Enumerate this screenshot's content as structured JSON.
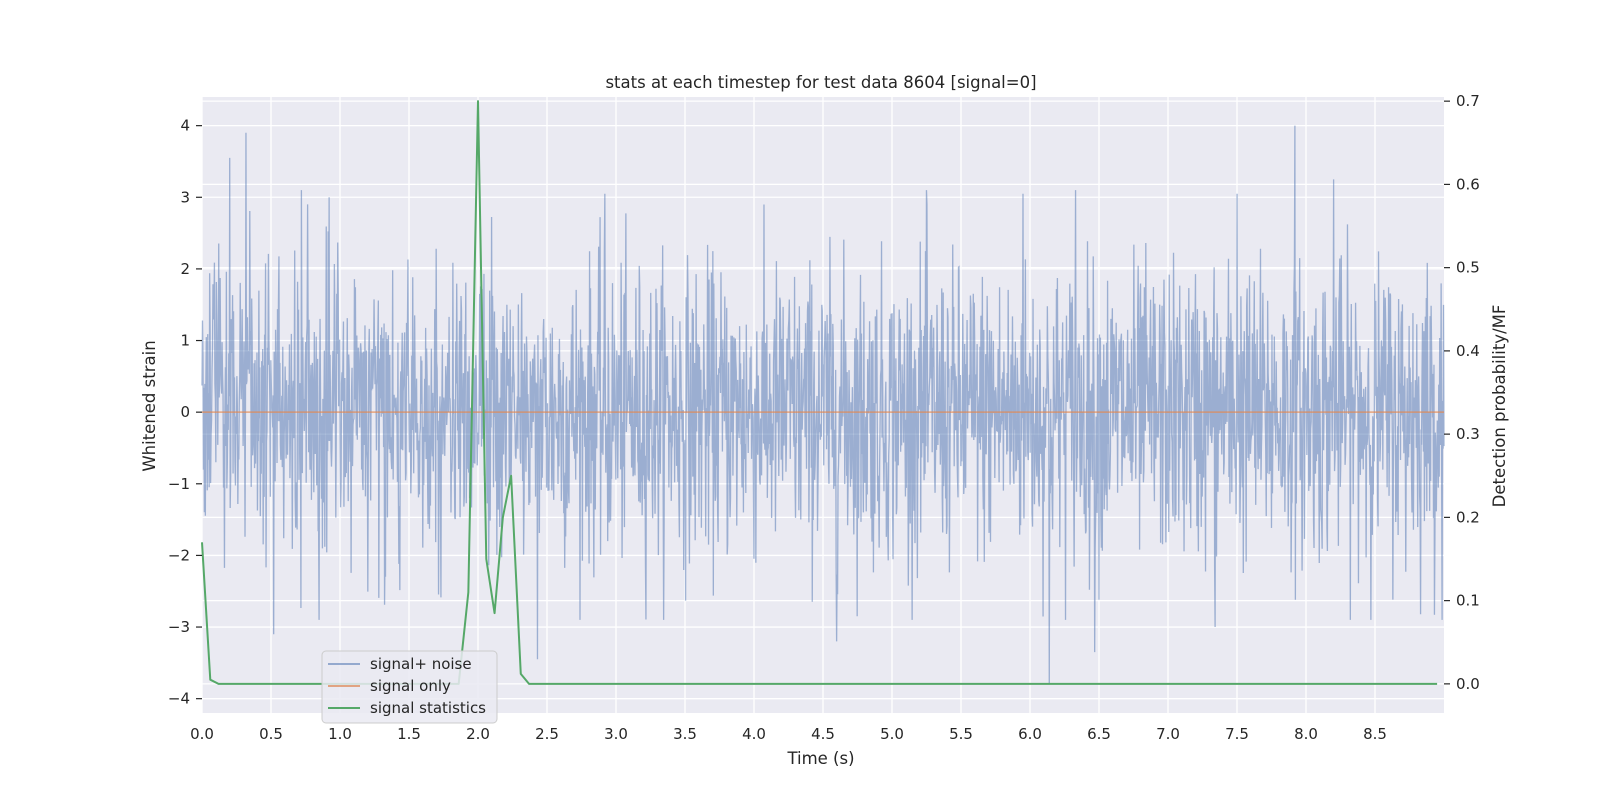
{
  "chart_data": {
    "type": "line",
    "title": "stats at each timestep for test data 8604 [signal=0]",
    "xlabel": "Time (s)",
    "ylabel": "Whitened strain",
    "ylabel_right": "Detection probability/MF",
    "xlim": [
      0.0,
      9.0
    ],
    "ylim": [
      -4.2,
      4.4
    ],
    "ylim_right": [
      -0.035,
      0.705
    ],
    "x_ticks": [
      "0.0",
      "0.5",
      "1.0",
      "1.5",
      "2.0",
      "2.5",
      "3.0",
      "3.5",
      "4.0",
      "4.5",
      "5.0",
      "5.5",
      "6.0",
      "6.5",
      "7.0",
      "7.5",
      "8.0",
      "8.5"
    ],
    "y_ticks": [
      "4",
      "3",
      "2",
      "1",
      "0",
      "−1",
      "−2",
      "−3",
      "−4"
    ],
    "y_ticks_right": [
      "0.7",
      "0.6",
      "0.5",
      "0.4",
      "0.3",
      "0.2",
      "0.1",
      "0.0"
    ],
    "grid": true,
    "legend_position": "lower-left",
    "series": [
      {
        "name": "signal+ noise",
        "color": "#4c72b0",
        "axis": "left",
        "style": "dense noise, amplitude ~ ±2 with peaks to about 4 and −3.8",
        "peaks": [
          {
            "x": 0.2,
            "y": 3.55
          },
          {
            "x": 0.32,
            "y": 3.9
          },
          {
            "x": 0.72,
            "y": 3.1
          },
          {
            "x": 0.92,
            "y": 3.0
          },
          {
            "x": 2.92,
            "y": 3.05
          },
          {
            "x": 5.25,
            "y": 3.1
          },
          {
            "x": 5.95,
            "y": 3.05
          },
          {
            "x": 6.33,
            "y": 3.1
          },
          {
            "x": 7.5,
            "y": 3.05
          },
          {
            "x": 7.92,
            "y": 4.0
          },
          {
            "x": 8.2,
            "y": 3.25
          },
          {
            "x": 0.52,
            "y": -3.1
          },
          {
            "x": 2.43,
            "y": -3.45
          },
          {
            "x": 4.6,
            "y": -3.2
          },
          {
            "x": 6.14,
            "y": -3.8
          },
          {
            "x": 6.47,
            "y": -3.35
          },
          {
            "x": 7.34,
            "y": -3.0
          }
        ]
      },
      {
        "name": "signal only",
        "color": "#dd8452",
        "axis": "left",
        "x": [
          0.0,
          9.0
        ],
        "y": [
          0.0,
          0.0
        ]
      },
      {
        "name": "signal statistics",
        "color": "#55a868",
        "axis": "right",
        "x": [
          0.0,
          0.06,
          0.12,
          1.86,
          1.93,
          2.0,
          2.06,
          2.12,
          2.18,
          2.24,
          2.31,
          2.37,
          8.95
        ],
        "y": [
          0.17,
          0.005,
          0.0,
          0.0,
          0.11,
          0.7,
          0.15,
          0.085,
          0.2,
          0.25,
          0.012,
          0.0,
          0.0
        ]
      }
    ]
  },
  "colors": {
    "plot_background": "#eaeaf2",
    "grid": "#ffffff"
  }
}
